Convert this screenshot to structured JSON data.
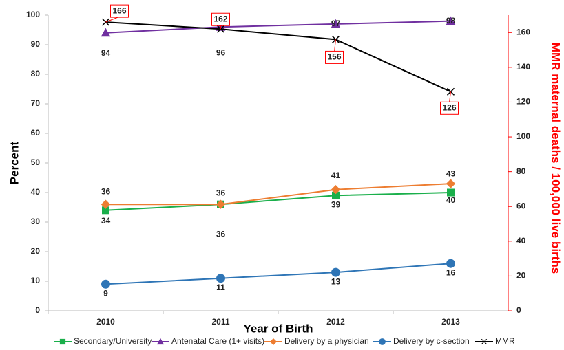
{
  "chart_data": {
    "type": "line",
    "x_label": "Year of Birth",
    "y_label": "Percent",
    "y2_label": "MMR maternal deaths / 100,000 live births",
    "categories": [
      "2010",
      "2011",
      "2012",
      "2013"
    ],
    "ylim": [
      0,
      100
    ],
    "yticks": [
      0,
      10,
      20,
      30,
      40,
      50,
      60,
      70,
      80,
      90,
      100
    ],
    "y2lim": [
      0,
      170
    ],
    "y2ticks": [
      0,
      20,
      40,
      60,
      80,
      100,
      120,
      140,
      160
    ],
    "y2_color": "#ff0000",
    "legend": "bottom",
    "series": [
      {
        "name": "Secondary/University",
        "color": "#1aaf4b",
        "marker": "square",
        "values": [
          34,
          36,
          39,
          40
        ]
      },
      {
        "name": "Antenatal Care (1+ visits)",
        "color": "#7030a0",
        "marker": "triangle",
        "values": [
          94,
          96,
          97,
          98
        ]
      },
      {
        "name": "Delivery by a physician",
        "color": "#ed7d31",
        "marker": "diamond",
        "values": [
          36,
          36,
          41,
          43
        ]
      },
      {
        "name": "Delivery by c-section",
        "color": "#2e75b6",
        "marker": "circle",
        "values": [
          9,
          11,
          13,
          16
        ]
      },
      {
        "name": "MMR",
        "color": "#000000",
        "marker": "x",
        "axis": "y2",
        "values": [
          166,
          162,
          156,
          126
        ]
      }
    ]
  }
}
